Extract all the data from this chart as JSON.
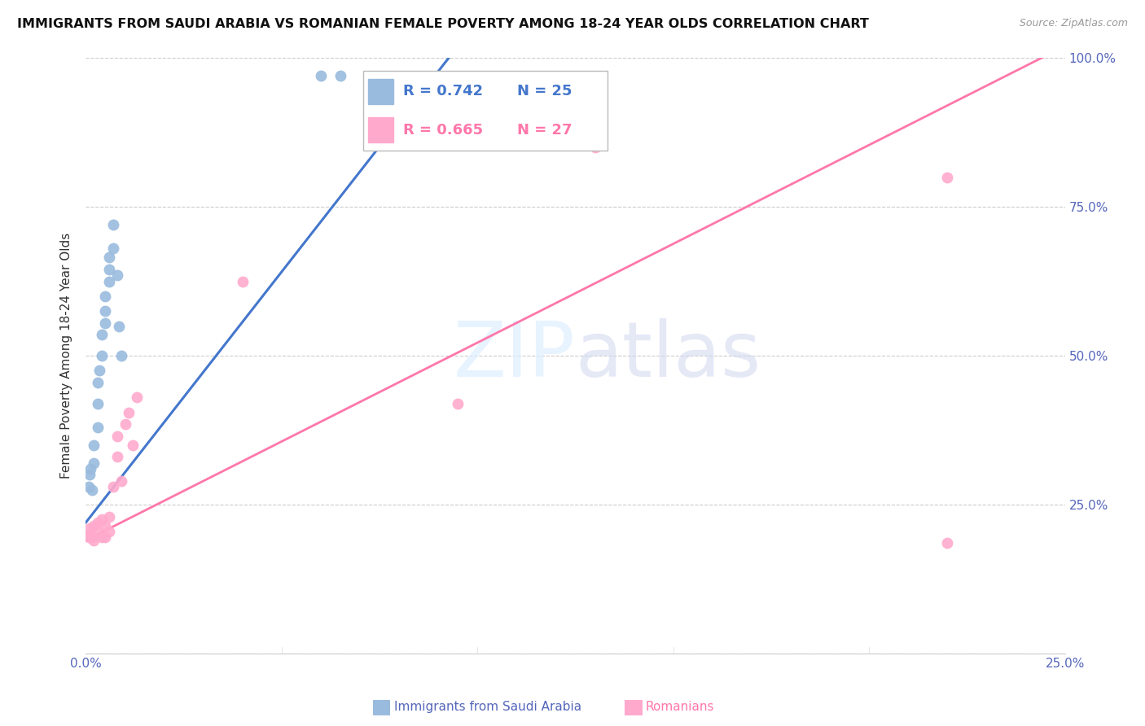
{
  "title": "IMMIGRANTS FROM SAUDI ARABIA VS ROMANIAN FEMALE POVERTY AMONG 18-24 YEAR OLDS CORRELATION CHART",
  "source": "Source: ZipAtlas.com",
  "ylabel": "Female Poverty Among 18-24 Year Olds",
  "xlabel_blue": "Immigrants from Saudi Arabia",
  "xlabel_pink": "Romanians",
  "legend_blue_r": "R = 0.742",
  "legend_blue_n": "N = 25",
  "legend_pink_r": "R = 0.665",
  "legend_pink_n": "N = 27",
  "blue_color": "#99BBDD",
  "pink_color": "#FFAACC",
  "blue_line_color": "#4477CC",
  "pink_line_color": "#FF77AA",
  "watermark_zip": "ZIP",
  "watermark_atlas": "atlas",
  "xlim": [
    0,
    0.25
  ],
  "ylim": [
    0,
    1.0
  ],
  "xtick_vals": [
    0.0,
    0.05,
    0.1,
    0.15,
    0.2,
    0.25
  ],
  "xtick_labels": [
    "0.0%",
    "",
    "",
    "",
    "",
    "25.0%"
  ],
  "ytick_vals": [
    0.0,
    0.25,
    0.5,
    0.75,
    1.0
  ],
  "right_ytick_labels": [
    "100.0%",
    "75.0%",
    "50.0%",
    "25.0%"
  ],
  "blue_line_x0": 0.0,
  "blue_line_y0": 0.22,
  "blue_line_x1": 0.095,
  "blue_line_y1": 1.02,
  "pink_line_x0": 0.0,
  "pink_line_y0": 0.19,
  "pink_line_x1": 0.25,
  "pink_line_y1": 1.02,
  "blue_x": [
    0.0008,
    0.001,
    0.0012,
    0.0015,
    0.002,
    0.002,
    0.003,
    0.003,
    0.003,
    0.0035,
    0.004,
    0.004,
    0.005,
    0.005,
    0.005,
    0.006,
    0.006,
    0.006,
    0.007,
    0.007,
    0.008,
    0.0085,
    0.009,
    0.06,
    0.065
  ],
  "blue_y": [
    0.28,
    0.3,
    0.31,
    0.275,
    0.32,
    0.35,
    0.38,
    0.42,
    0.455,
    0.475,
    0.5,
    0.535,
    0.555,
    0.575,
    0.6,
    0.625,
    0.645,
    0.665,
    0.68,
    0.72,
    0.635,
    0.55,
    0.5,
    0.97,
    0.97
  ],
  "pink_x": [
    0.0005,
    0.0008,
    0.001,
    0.0015,
    0.002,
    0.002,
    0.003,
    0.003,
    0.004,
    0.004,
    0.005,
    0.005,
    0.006,
    0.006,
    0.007,
    0.008,
    0.008,
    0.009,
    0.01,
    0.011,
    0.012,
    0.013,
    0.04,
    0.095,
    0.13,
    0.22,
    0.22
  ],
  "pink_y": [
    0.2,
    0.195,
    0.21,
    0.195,
    0.19,
    0.215,
    0.205,
    0.22,
    0.195,
    0.225,
    0.215,
    0.195,
    0.205,
    0.23,
    0.28,
    0.33,
    0.365,
    0.29,
    0.385,
    0.405,
    0.35,
    0.43,
    0.625,
    0.42,
    0.85,
    0.8,
    0.185
  ],
  "background_color": "#FFFFFF",
  "grid_color": "#CCCCCC",
  "tick_color": "#5566BB",
  "title_fontsize": 11.5,
  "source_fontsize": 9,
  "ylabel_fontsize": 11,
  "legend_fontsize": 13,
  "tick_fontsize": 11,
  "dot_size": 100
}
